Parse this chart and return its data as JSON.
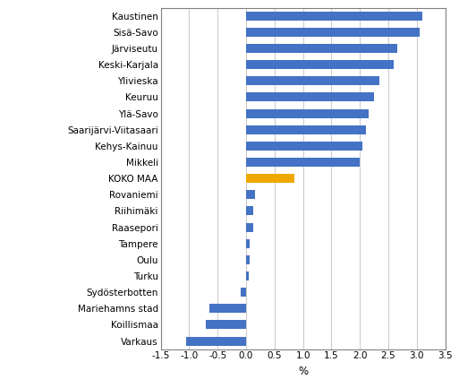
{
  "categories": [
    "Kaustinen",
    "Sisä-Savo",
    "Järviseutu",
    "Keski-Karjala",
    "Ylivieska",
    "Keuruu",
    "Ylä-Savo",
    "Saarijärvi-Viitasaari",
    "Kehys-Kainuu",
    "Mikkeli",
    "KOKO MAA",
    "Rovaniemi",
    "Riihimäki",
    "Raasepori",
    "Tampere",
    "Oulu",
    "Turku",
    "Sydösterbotten",
    "Mariehamns stad",
    "Koillismaa",
    "Varkaus"
  ],
  "values": [
    3.1,
    3.05,
    2.65,
    2.6,
    2.35,
    2.25,
    2.15,
    2.1,
    2.05,
    2.0,
    0.85,
    0.15,
    0.13,
    0.12,
    0.07,
    0.06,
    0.05,
    -0.1,
    -0.65,
    -0.7,
    -1.05
  ],
  "bar_colors": [
    "#4472C4",
    "#4472C4",
    "#4472C4",
    "#4472C4",
    "#4472C4",
    "#4472C4",
    "#4472C4",
    "#4472C4",
    "#4472C4",
    "#4472C4",
    "#F0A800",
    "#4472C4",
    "#4472C4",
    "#4472C4",
    "#4472C4",
    "#4472C4",
    "#4472C4",
    "#4472C4",
    "#4472C4",
    "#4472C4",
    "#4472C4"
  ],
  "xlabel": "%",
  "xlim": [
    -1.5,
    3.5
  ],
  "xticks": [
    -1.5,
    -1.0,
    -0.5,
    0.0,
    0.5,
    1.0,
    1.5,
    2.0,
    2.5,
    3.0,
    3.5
  ],
  "xtick_labels": [
    "-1.5",
    "-1.0",
    "-0.5",
    "0.0",
    "0.5",
    "1.0",
    "1.5",
    "2.0",
    "2.5",
    "3.0",
    "3.5"
  ],
  "background_color": "#ffffff",
  "bar_height": 0.55,
  "grid_color": "#cccccc",
  "label_fontsize": 7.5,
  "tick_fontsize": 7.5,
  "xlabel_fontsize": 8.5,
  "border_color": "#808080"
}
